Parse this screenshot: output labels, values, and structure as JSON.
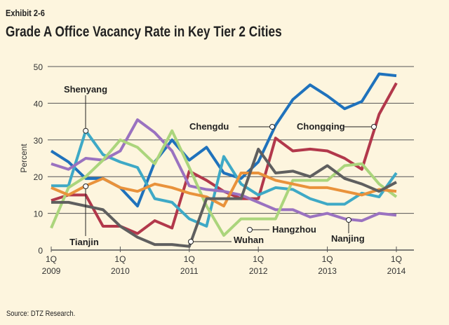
{
  "exhibit": "Exhibit 2-6",
  "source": "Source: DTZ Research.",
  "chart_data": {
    "type": "line",
    "title": "Grade A Office Vacancy Rate in Key Tier 2 Cities",
    "ylabel": "Percent",
    "xlabel": "",
    "ylim": [
      0,
      50
    ],
    "yticks": [
      0,
      10,
      20,
      30,
      40,
      50
    ],
    "grid": true,
    "x": [
      "1Q 2009",
      "2Q 2009",
      "3Q 2009",
      "4Q 2009",
      "1Q 2010",
      "2Q 2010",
      "3Q 2010",
      "4Q 2010",
      "1Q 2011",
      "2Q 2011",
      "3Q 2011",
      "4Q 2011",
      "1Q 2012",
      "2Q 2012",
      "3Q 2012",
      "4Q 2012",
      "1Q 2013",
      "2Q 2013",
      "3Q 2013",
      "4Q 2013",
      "1Q 2014"
    ],
    "xticks": [
      {
        "q": "1Q",
        "year": "2009"
      },
      {
        "q": "1Q",
        "year": "2010"
      },
      {
        "q": "1Q",
        "year": "2011"
      },
      {
        "q": "1Q",
        "year": "2012"
      },
      {
        "q": "1Q",
        "year": "2013"
      },
      {
        "q": "1Q",
        "year": "2014"
      }
    ],
    "series": [
      {
        "name": "Chengdu",
        "color": "#1f72bc",
        "values": [
          27,
          24,
          19.5,
          19.5,
          17,
          12,
          24,
          30,
          24.5,
          28,
          21,
          19.5,
          24,
          34,
          41,
          45,
          42,
          38.5,
          40.5,
          48,
          47.5
        ]
      },
      {
        "name": "Chongqing",
        "color": "#b2384b",
        "values": [
          13.5,
          15,
          15,
          6.5,
          6.5,
          4.5,
          8,
          6,
          21.5,
          19,
          16,
          14,
          14,
          30.5,
          27,
          27.5,
          27,
          25,
          22,
          37,
          45.5
        ]
      },
      {
        "name": "Shenyang",
        "color": "#3ea9c6",
        "values": [
          17.5,
          17.5,
          32.5,
          26,
          24,
          22.5,
          14,
          13,
          8.5,
          6.5,
          25.5,
          18,
          15,
          17,
          16.5,
          14,
          12.5,
          12.5,
          15.5,
          14.5,
          21
        ]
      },
      {
        "name": "Nanjing",
        "color": "#9a72c0",
        "values": [
          23.5,
          22,
          25,
          24.5,
          27,
          35.5,
          32,
          27,
          17.5,
          16.5,
          16,
          15,
          13,
          11,
          11,
          9,
          10,
          8.5,
          8,
          10,
          9.5
        ]
      },
      {
        "name": "Hangzhou",
        "color": "#abd57c",
        "values": [
          6,
          17,
          20,
          24.5,
          30,
          28,
          23.5,
          32.5,
          22.5,
          12,
          4,
          8.5,
          8.5,
          8.5,
          19,
          19,
          19,
          23,
          23.5,
          18,
          14.5
        ]
      },
      {
        "name": "Tianjin",
        "color": "#e9923b",
        "values": [
          17,
          15,
          17.5,
          19.5,
          17,
          16,
          18,
          17,
          15.5,
          14.5,
          12,
          21,
          21,
          19,
          18,
          17,
          17,
          16,
          15,
          16.5,
          16
        ]
      },
      {
        "name": "Wuhan",
        "color": "#5f5f5f",
        "values": [
          13,
          13,
          12,
          11,
          6.5,
          3.5,
          1.5,
          1.5,
          1,
          14,
          14,
          14,
          27.5,
          21,
          21.5,
          20,
          23,
          19.5,
          18,
          16,
          18.5
        ]
      }
    ]
  }
}
